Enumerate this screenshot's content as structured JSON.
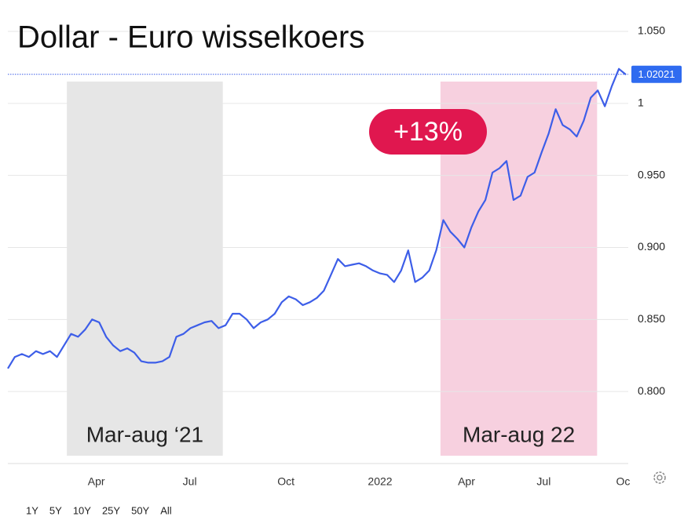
{
  "chart_data": {
    "type": "line",
    "title": "Dollar -  Euro wisselkoers",
    "series": [
      {
        "color": "#3d5ee8",
        "values": [
          0.816,
          0.824,
          0.826,
          0.824,
          0.828,
          0.826,
          0.828,
          0.824,
          0.832,
          0.84,
          0.838,
          0.843,
          0.85,
          0.848,
          0.838,
          0.832,
          0.828,
          0.83,
          0.827,
          0.821,
          0.82,
          0.82,
          0.821,
          0.824,
          0.838,
          0.84,
          0.844,
          0.846,
          0.848,
          0.849,
          0.844,
          0.846,
          0.854,
          0.854,
          0.85,
          0.844,
          0.848,
          0.85,
          0.854,
          0.862,
          0.866,
          0.864,
          0.86,
          0.862,
          0.865,
          0.87,
          0.881,
          0.892,
          0.887,
          0.888,
          0.889,
          0.887,
          0.884,
          0.882,
          0.881,
          0.876,
          0.884,
          0.898,
          0.876,
          0.879,
          0.884,
          0.898,
          0.919,
          0.911,
          0.906,
          0.9,
          0.914,
          0.925,
          0.933,
          0.952,
          0.955,
          0.96,
          0.933,
          0.936,
          0.949,
          0.952,
          0.966,
          0.979,
          0.996,
          0.985,
          0.982,
          0.977,
          0.988,
          1.004,
          1.009,
          0.998,
          1.012,
          1.024,
          1.02
        ]
      }
    ],
    "xlim": [
      0,
      88
    ],
    "xticks": [
      {
        "value": 12.6,
        "label": "Apr"
      },
      {
        "value": 25.9,
        "label": "Jul"
      },
      {
        "value": 39.6,
        "label": "Oct"
      },
      {
        "value": 53.0,
        "label": "2022"
      },
      {
        "value": 65.3,
        "label": "Apr"
      },
      {
        "value": 76.3,
        "label": "Jul"
      },
      {
        "value": 87.6,
        "label": "Oc"
      }
    ],
    "ylim": [
      0.75,
      1.05
    ],
    "yticks": [
      {
        "value": 0.8,
        "label": "0.800"
      },
      {
        "value": 0.85,
        "label": "0.850"
      },
      {
        "value": 0.9,
        "label": "0.900"
      },
      {
        "value": 0.95,
        "label": "0.950"
      },
      1,
      {
        "value": 1.05,
        "label": "1.050"
      }
    ],
    "grid": true,
    "last_value": 1.02021,
    "highlights": [
      {
        "label": "Mar-aug ‘21",
        "from": 8.4,
        "to": 30.6,
        "color": "#e6e6e6"
      },
      {
        "label": "Mar-aug 22",
        "from": 61.6,
        "to": 83.9,
        "color": "#f7d0df"
      }
    ],
    "annotation": {
      "text": "+13%",
      "color": "#e0174f"
    },
    "ranges": [
      "1Y",
      "5Y",
      "10Y",
      "25Y",
      "50Y",
      "All"
    ]
  }
}
